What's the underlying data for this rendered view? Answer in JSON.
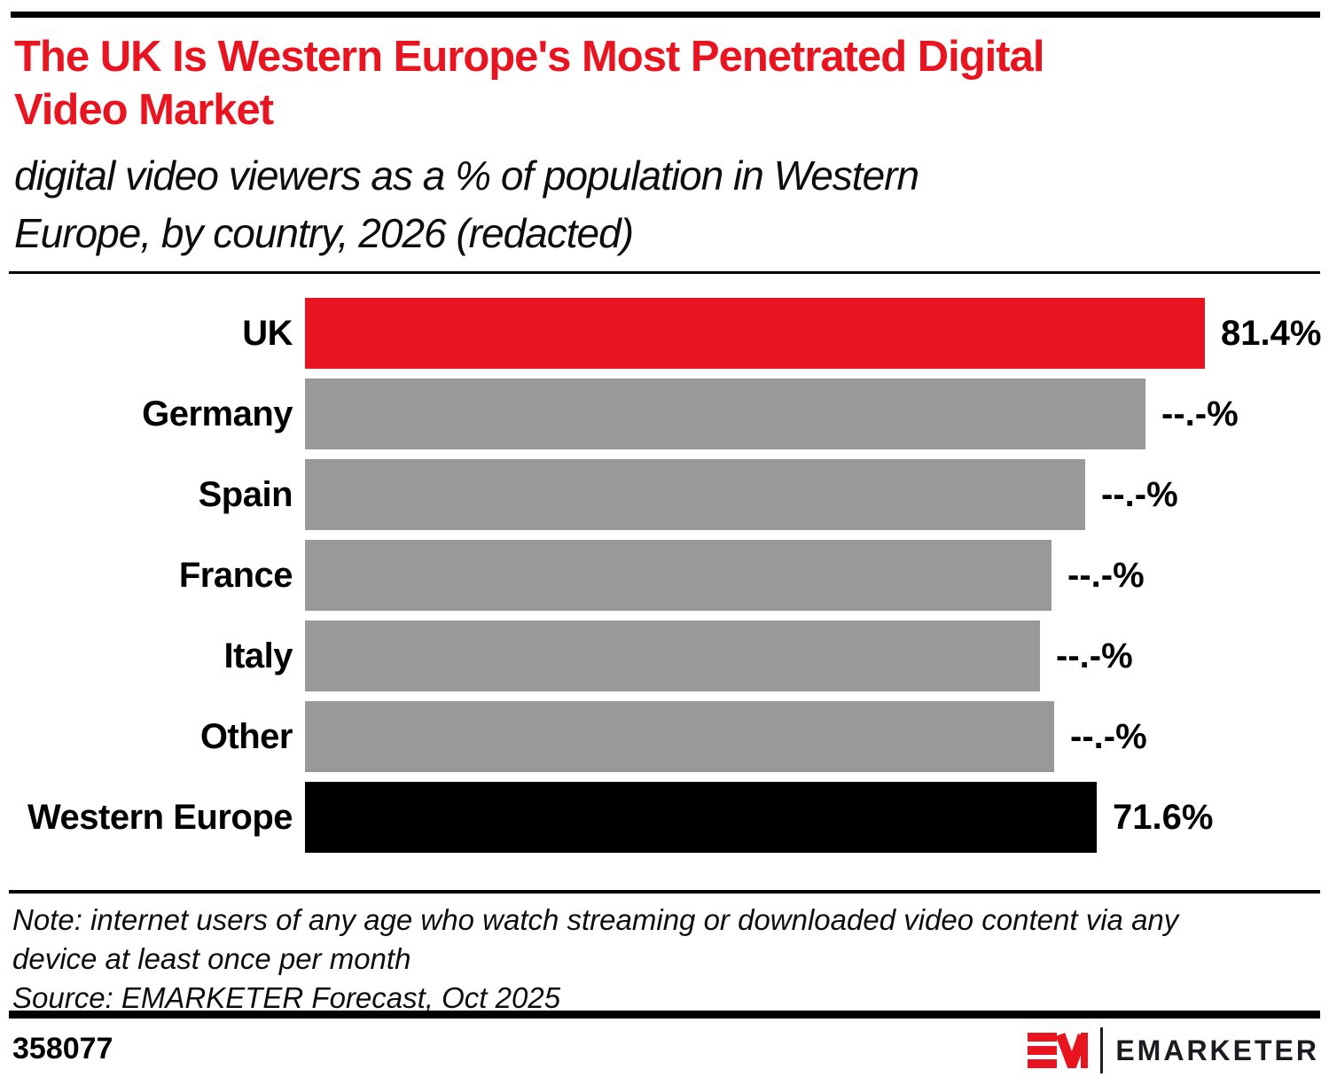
{
  "page": {
    "title_lines": [
      "The UK Is Western Europe's Most Penetrated Digital",
      "Video Market"
    ],
    "subtitle_lines": [
      "digital video viewers as a % of population in Western",
      "Europe, by country, 2026 (redacted)"
    ],
    "note_lines": [
      "Note: internet users of any age who watch streaming or downloaded video content via any",
      "device at least once per month"
    ],
    "source_line": "Source: EMARKETER Forecast, Oct 2025",
    "chart_id": "358077",
    "logo": {
      "mark": "EM-monogram",
      "wordmark": "EMARKETER"
    }
  },
  "colors": {
    "accent_red": "#e8141f",
    "bar_gray": "#999999",
    "bar_black": "#000000",
    "text_black": "#0d0d0d",
    "logo_ink": "#1b1b21"
  },
  "chart_data": {
    "type": "bar",
    "orientation": "horizontal",
    "title": "The UK Is Western Europe's Most Penetrated Digital Video Market",
    "subtitle": "digital video viewers as a % of population in Western Europe, by country, 2026 (redacted)",
    "categories": [
      "UK",
      "Germany",
      "Spain",
      "France",
      "Italy",
      "Other",
      "Western Europe"
    ],
    "values": [
      81.4,
      76.0,
      70.6,
      67.5,
      66.5,
      67.8,
      71.6
    ],
    "value_labels": [
      "81.4%",
      "--.-%",
      "--.-%",
      "--.-%",
      "--.-%",
      "--.-%",
      "71.6%"
    ],
    "redacted": [
      false,
      true,
      true,
      true,
      true,
      true,
      false
    ],
    "bar_colors": [
      "#e8141f",
      "#999999",
      "#999999",
      "#999999",
      "#999999",
      "#999999",
      "#000000"
    ],
    "xlim": [
      0,
      81.4
    ],
    "grid": false,
    "legend": "none"
  }
}
